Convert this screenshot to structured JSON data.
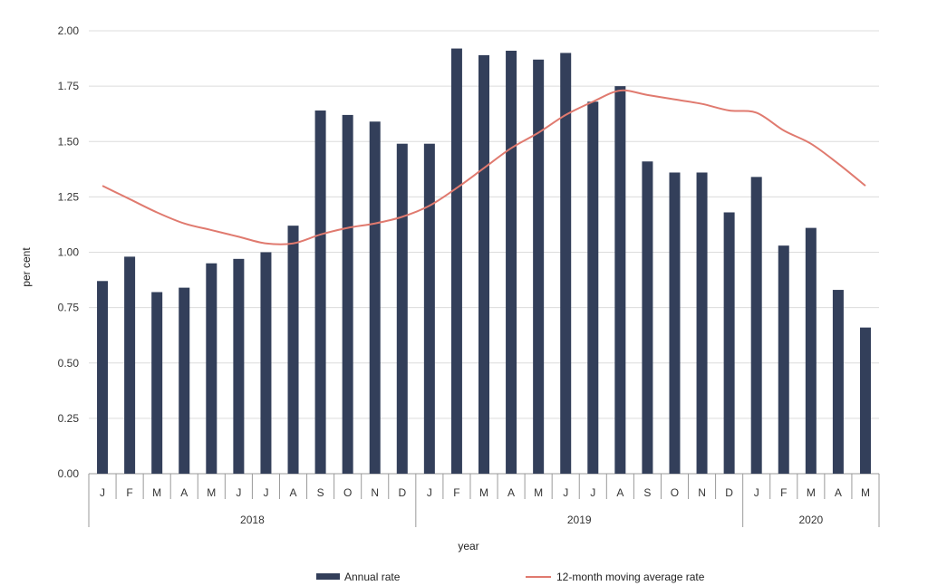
{
  "chart_data": {
    "type": "bar",
    "ylabel": "per cent",
    "xlabel": "year",
    "ylim": [
      0,
      2.0
    ],
    "yticks": [
      "0.00",
      "0.25",
      "0.50",
      "0.75",
      "1.00",
      "1.25",
      "1.50",
      "1.75",
      "2.00"
    ],
    "grid": true,
    "categories": [
      "J",
      "F",
      "M",
      "A",
      "M",
      "J",
      "J",
      "A",
      "S",
      "O",
      "N",
      "D",
      "J",
      "F",
      "M",
      "A",
      "M",
      "J",
      "J",
      "A",
      "S",
      "O",
      "N",
      "D",
      "J",
      "F",
      "M",
      "A",
      "M"
    ],
    "years": [
      {
        "label": "2018",
        "count": 12
      },
      {
        "label": "2019",
        "count": 12
      },
      {
        "label": "2020",
        "count": 5
      }
    ],
    "series": [
      {
        "name": "Annual rate",
        "type": "bar",
        "color": "#333f5a",
        "values": [
          0.87,
          0.98,
          0.82,
          0.84,
          0.95,
          0.97,
          1.0,
          1.12,
          1.64,
          1.62,
          1.59,
          1.49,
          1.49,
          1.92,
          1.89,
          1.91,
          1.87,
          1.9,
          1.68,
          1.75,
          1.41,
          1.36,
          1.36,
          1.18,
          1.34,
          1.03,
          1.11,
          0.83,
          0.66
        ]
      },
      {
        "name": "12-month moving average rate",
        "type": "line",
        "color": "#e07a6f",
        "values": [
          1.3,
          1.24,
          1.18,
          1.13,
          1.1,
          1.07,
          1.04,
          1.04,
          1.08,
          1.11,
          1.13,
          1.16,
          1.21,
          1.29,
          1.38,
          1.47,
          1.54,
          1.62,
          1.68,
          1.73,
          1.71,
          1.69,
          1.67,
          1.64,
          1.63,
          1.55,
          1.49,
          1.4,
          1.3
        ]
      }
    ],
    "legend_position": "bottom"
  }
}
